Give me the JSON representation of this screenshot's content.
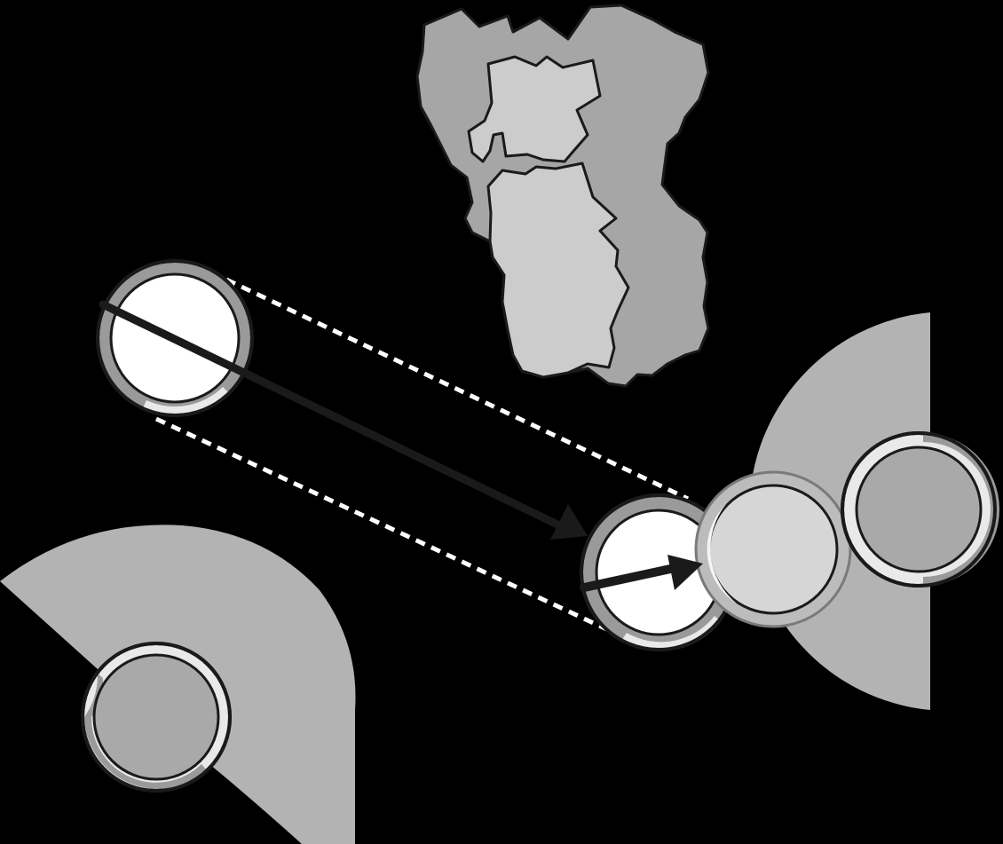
{
  "diagram": {
    "type": "game-piece-movement-illustration",
    "background_color": "#000000",
    "colors": {
      "outline": "#1a1a1a",
      "arc_zone": "#b3b3b3",
      "piece_white": "#ffffff",
      "piece_gray": "#a9a9a9",
      "piece_light": "#d6d6d6",
      "rim_dark": "#9a9a9a",
      "rim_light": "#e9e9e9",
      "terrain_dark": "#a6a6a6",
      "terrain_light": "#cccccc",
      "arrow": "#1a1a1a",
      "guide_dash": "#ffffff"
    },
    "pieces": [
      {
        "id": "moving-piece-start",
        "fill": "white",
        "rim": "dark-top-light-bottom"
      },
      {
        "id": "moving-piece-end",
        "fill": "white",
        "rim": "dark-left-light-bottom"
      },
      {
        "id": "blocking-piece-ghost",
        "fill": "light",
        "rim": "light-ring",
        "state": "pushed"
      },
      {
        "id": "enemy-piece-right",
        "fill": "gray",
        "rim": "light-left-dark-right"
      },
      {
        "id": "enemy-piece-bottom-left",
        "fill": "gray",
        "rim": "light-top-dark-bottom"
      }
    ],
    "arcs": [
      {
        "id": "arc-zone-right",
        "facing": "left"
      },
      {
        "id": "arc-zone-bottom-left",
        "facing": "up-right"
      }
    ],
    "arrows": [
      {
        "id": "movement-arrow-long",
        "from": "moving-piece-start",
        "to": "moving-piece-end"
      },
      {
        "id": "push-arrow-short",
        "from": "moving-piece-end",
        "to": "blocking-piece-ghost"
      }
    ],
    "terrain": {
      "id": "terrain-feature",
      "regions": 2
    }
  }
}
